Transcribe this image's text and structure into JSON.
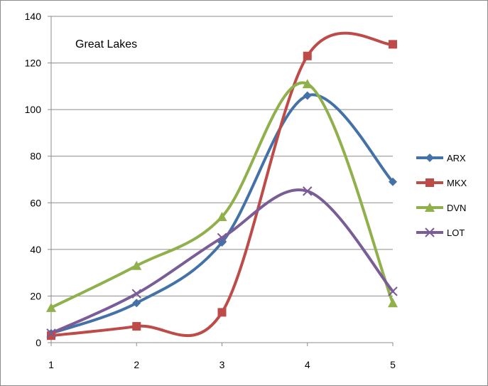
{
  "chart_data": {
    "type": "line",
    "title": "Great Lakes",
    "xlabel": "",
    "ylabel": "",
    "x": [
      1,
      2,
      3,
      4,
      5
    ],
    "ylim": [
      0,
      140
    ],
    "yticks": [
      0,
      20,
      40,
      60,
      80,
      100,
      120,
      140
    ],
    "grid": true,
    "legend_position": "right",
    "smooth": true,
    "series": [
      {
        "name": "ARX",
        "values": [
          4,
          17,
          43,
          106,
          69
        ],
        "color": "#4472a8",
        "marker": "diamond"
      },
      {
        "name": "MKX",
        "values": [
          3,
          7,
          13,
          123,
          128
        ],
        "color": "#be4b48",
        "marker": "square"
      },
      {
        "name": "DVN",
        "values": [
          15,
          33,
          54,
          111,
          17
        ],
        "color": "#8fb04b",
        "marker": "triangle"
      },
      {
        "name": "LOT",
        "values": [
          4,
          21,
          45,
          65,
          22
        ],
        "color": "#7a5c96",
        "marker": "x"
      }
    ]
  }
}
